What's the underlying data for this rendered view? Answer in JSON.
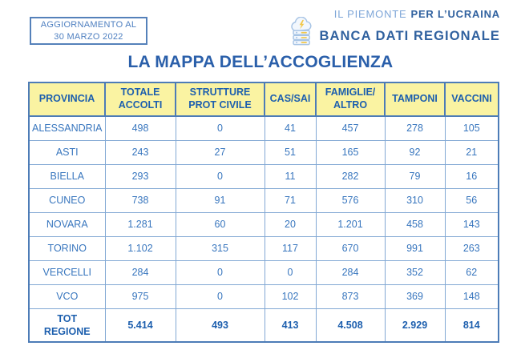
{
  "badge": {
    "line1": "AGGIORNAMENTO AL",
    "line2": "30 MARZO 2022"
  },
  "logo": {
    "top_light": "IL PIEMONTE",
    "top_bold": "PER L’UCRAINA",
    "bottom": "BANCA DATI REGIONALE",
    "icon": "cloud-database-icon"
  },
  "title": "LA MAPPA DELL’ACCOGLIENZA",
  "table": {
    "headers": [
      "PROVINCIA",
      "TOTALE\nACCOLTI",
      "STRUTTURE\nPROT CIVILE",
      "CAS/SAI",
      "FAMIGLIE/\nALTRO",
      "TAMPONI",
      "VACCINI"
    ],
    "rows": [
      [
        "ALESSANDRIA",
        "498",
        "0",
        "41",
        "457",
        "278",
        "105"
      ],
      [
        "ASTI",
        "243",
        "27",
        "51",
        "165",
        "92",
        "21"
      ],
      [
        "BIELLA",
        "293",
        "0",
        "11",
        "282",
        "79",
        "16"
      ],
      [
        "CUNEO",
        "738",
        "91",
        "71",
        "576",
        "310",
        "56"
      ],
      [
        "NOVARA",
        "1.281",
        "60",
        "20",
        "1.201",
        "458",
        "143"
      ],
      [
        "TORINO",
        "1.102",
        "315",
        "117",
        "670",
        "991",
        "263"
      ],
      [
        "VERCELLI",
        "284",
        "0",
        "0",
        "284",
        "352",
        "62"
      ],
      [
        "VCO",
        "975",
        "0",
        "102",
        "873",
        "369",
        "148"
      ]
    ],
    "total_row": [
      "TOT\nREGIONE",
      "5.414",
      "493",
      "413",
      "4.508",
      "2.929",
      "814"
    ]
  },
  "chart_data": {
    "type": "table",
    "title": "LA MAPPA DELL’ACCOGLIENZA",
    "columns": [
      "PROVINCIA",
      "TOTALE ACCOLTI",
      "STRUTTURE PROT CIVILE",
      "CAS/SAI",
      "FAMIGLIE/ALTRO",
      "TAMPONI",
      "VACCINI"
    ],
    "rows": [
      {
        "provincia": "ALESSANDRIA",
        "totale_accolti": 498,
        "strutture_prot_civile": 0,
        "cas_sai": 41,
        "famiglie_altro": 457,
        "tamponi": 278,
        "vaccini": 105
      },
      {
        "provincia": "ASTI",
        "totale_accolti": 243,
        "strutture_prot_civile": 27,
        "cas_sai": 51,
        "famiglie_altro": 165,
        "tamponi": 92,
        "vaccini": 21
      },
      {
        "provincia": "BIELLA",
        "totale_accolti": 293,
        "strutture_prot_civile": 0,
        "cas_sai": 11,
        "famiglie_altro": 282,
        "tamponi": 79,
        "vaccini": 16
      },
      {
        "provincia": "CUNEO",
        "totale_accolti": 738,
        "strutture_prot_civile": 91,
        "cas_sai": 71,
        "famiglie_altro": 576,
        "tamponi": 310,
        "vaccini": 56
      },
      {
        "provincia": "NOVARA",
        "totale_accolti": 1281,
        "strutture_prot_civile": 60,
        "cas_sai": 20,
        "famiglie_altro": 1201,
        "tamponi": 458,
        "vaccini": 143
      },
      {
        "provincia": "TORINO",
        "totale_accolti": 1102,
        "strutture_prot_civile": 315,
        "cas_sai": 117,
        "famiglie_altro": 670,
        "tamponi": 991,
        "vaccini": 263
      },
      {
        "provincia": "VERCELLI",
        "totale_accolti": 284,
        "strutture_prot_civile": 0,
        "cas_sai": 0,
        "famiglie_altro": 284,
        "tamponi": 352,
        "vaccini": 62
      },
      {
        "provincia": "VCO",
        "totale_accolti": 975,
        "strutture_prot_civile": 0,
        "cas_sai": 102,
        "famiglie_altro": 873,
        "tamponi": 369,
        "vaccini": 148
      }
    ],
    "total_row": {
      "provincia": "TOT REGIONE",
      "totale_accolti": 5414,
      "strutture_prot_civile": 493,
      "cas_sai": 413,
      "famiglie_altro": 4508,
      "tamponi": 2929,
      "vaccini": 814
    },
    "update_note": "AGGIORNAMENTO AL 30 MARZO 2022"
  },
  "colors": {
    "title_blue": "#2a5faa",
    "header_yellow": "#faf3a2",
    "outer_border_blue": "#4d7cb7",
    "inner_border_blue": "#82a8d4",
    "data_text_blue": "#3876be",
    "header_text_blue": "#1d5fae",
    "logo_light_blue": "#7ea6d8",
    "logo_dark_blue": "#30619f",
    "icon_yellow": "#f2c84b"
  }
}
